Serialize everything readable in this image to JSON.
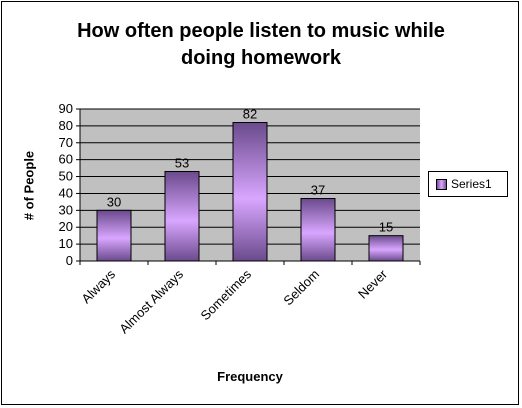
{
  "chart_data": {
    "type": "bar",
    "title": "How often people listen to music while doing homework",
    "title_lines": [
      "How often people listen to music while",
      "doing homework"
    ],
    "xlabel": "Frequency",
    "ylabel": "# of People",
    "categories": [
      "Always",
      "Almost Always",
      "Sometimes",
      "Seldom",
      "Never"
    ],
    "series": [
      {
        "name": "Series1",
        "values": [
          30,
          53,
          82,
          37,
          15
        ]
      }
    ],
    "data_labels": [
      "30",
      "53",
      "82",
      "37",
      "15"
    ],
    "ylim": [
      0,
      90
    ],
    "y_ticks": [
      "0",
      "10",
      "20",
      "30",
      "40",
      "50",
      "60",
      "70",
      "80",
      "90"
    ],
    "grid": true,
    "legend_position": "right",
    "colors": {
      "plot_background": "#c0c0c0",
      "bar_light": "#d9a6ff",
      "bar_dark": "#6a4a8c",
      "gridline": "#000000"
    }
  }
}
